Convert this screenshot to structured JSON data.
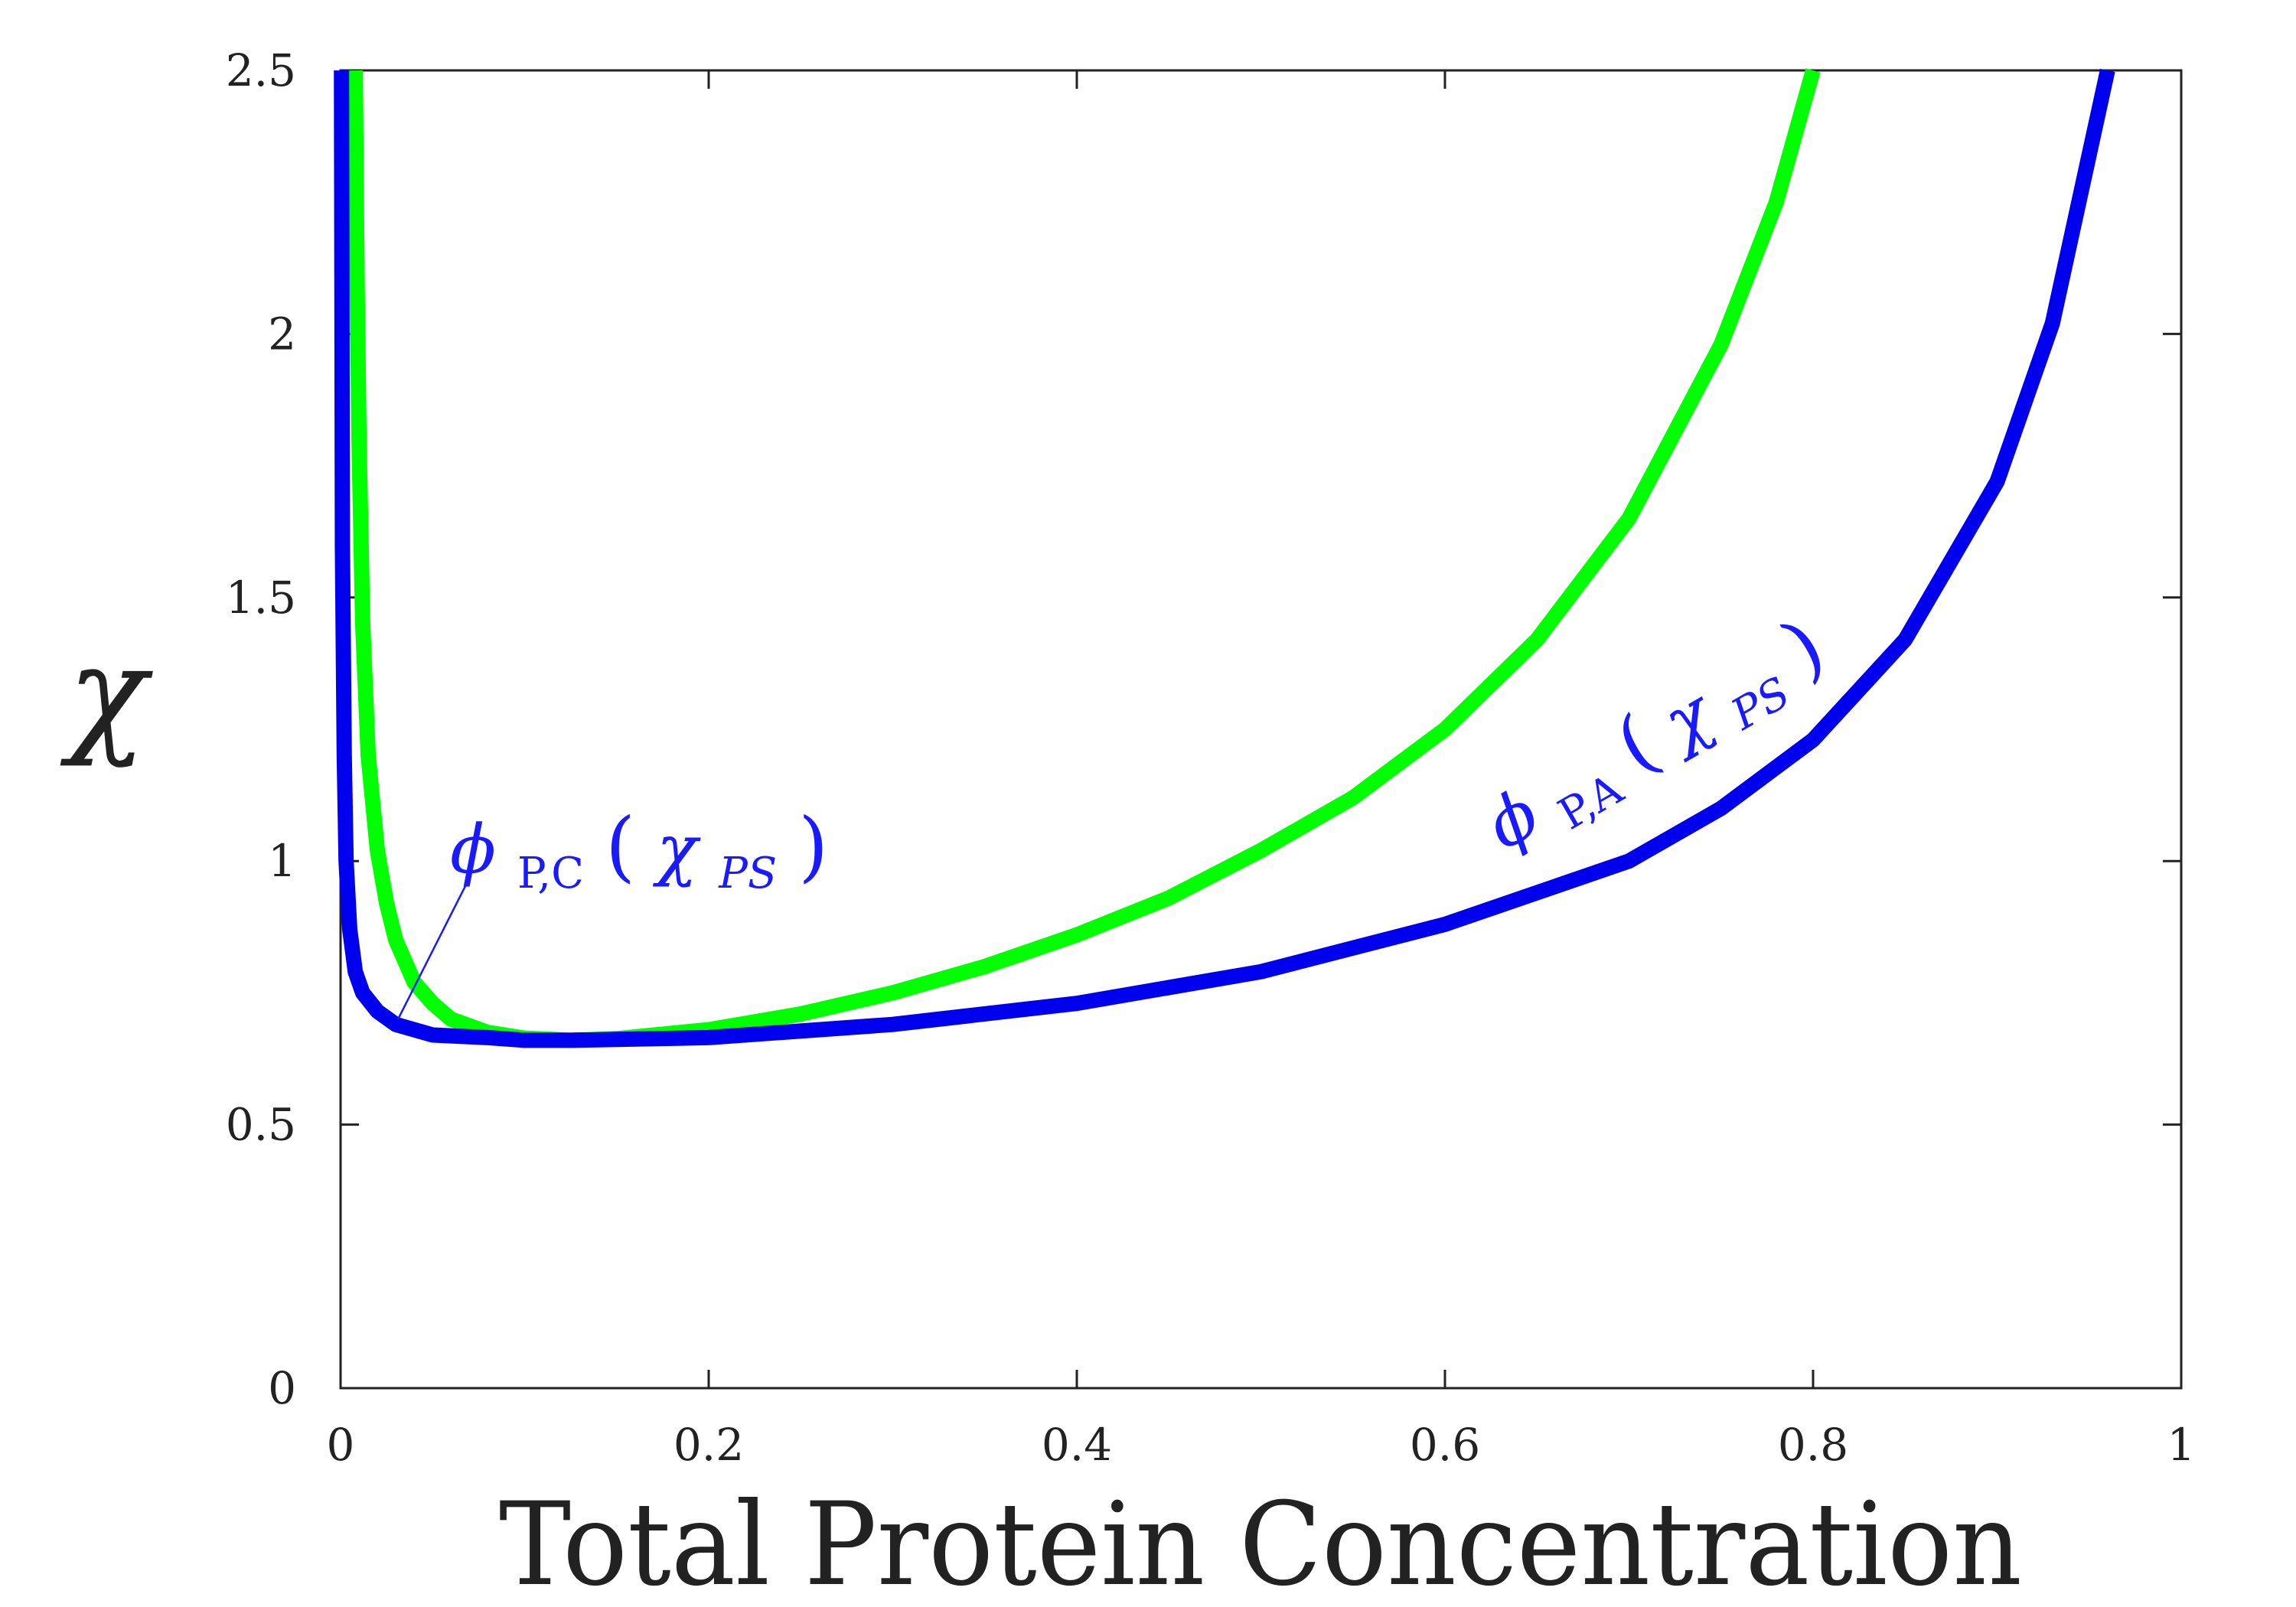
{
  "chart_data": {
    "type": "line",
    "xlabel": "Total Protein Concentration",
    "ylabel": "χ",
    "xlim": [
      0,
      1
    ],
    "ylim": [
      0,
      2.5
    ],
    "x_ticks": [
      "0",
      "0.2",
      "0.4",
      "0.6",
      "0.8",
      "1"
    ],
    "y_ticks": [
      "0",
      "0.5",
      "1",
      "1.5",
      "2",
      "2.5"
    ],
    "grid": false,
    "legend": "none",
    "series": [
      {
        "color": "#00ff00",
        "x": [
          0.008,
          0.009,
          0.01,
          0.012,
          0.015,
          0.02,
          0.025,
          0.03,
          0.04,
          0.05,
          0.06,
          0.08,
          0.1,
          0.125,
          0.15,
          0.2,
          0.25,
          0.3,
          0.35,
          0.4,
          0.45,
          0.5,
          0.55,
          0.6,
          0.65,
          0.7,
          0.75,
          0.78,
          0.8
        ],
        "y": [
          2.5,
          2.1,
          1.8,
          1.45,
          1.2,
          1.02,
          0.92,
          0.85,
          0.77,
          0.73,
          0.7,
          0.675,
          0.664,
          0.66,
          0.663,
          0.68,
          0.71,
          0.75,
          0.8,
          0.86,
          0.93,
          1.02,
          1.12,
          1.25,
          1.42,
          1.65,
          1.98,
          2.25,
          2.5
        ]
      },
      {
        "color": "#0000ee",
        "x": [
          0.0005,
          0.001,
          0.002,
          0.003,
          0.005,
          0.008,
          0.012,
          0.02,
          0.03,
          0.05,
          0.08,
          0.1,
          0.125,
          0.2,
          0.3,
          0.4,
          0.5,
          0.6,
          0.7,
          0.75,
          0.8,
          0.85,
          0.9,
          0.93,
          0.96
        ],
        "y": [
          2.5,
          1.6,
          1.2,
          1.0,
          0.87,
          0.79,
          0.75,
          0.715,
          0.69,
          0.67,
          0.665,
          0.66,
          0.66,
          0.665,
          0.69,
          0.73,
          0.79,
          0.88,
          1.0,
          1.1,
          1.23,
          1.42,
          1.72,
          2.02,
          2.5
        ]
      }
    ],
    "annotations": [
      {
        "base": "ϕ",
        "subscript": "P,C",
        "open": "(",
        "chi": "χ",
        "chi_subscript": "PS",
        "close": ")",
        "color": "#1a1aff",
        "points_to": {
          "x": 0.03,
          "y": 0.69
        }
      },
      {
        "base": "ϕ",
        "subscript": "P,A",
        "open": "(",
        "chi": "χ",
        "chi_subscript": "PS",
        "close": ")",
        "color": "#1a1aff"
      }
    ]
  }
}
